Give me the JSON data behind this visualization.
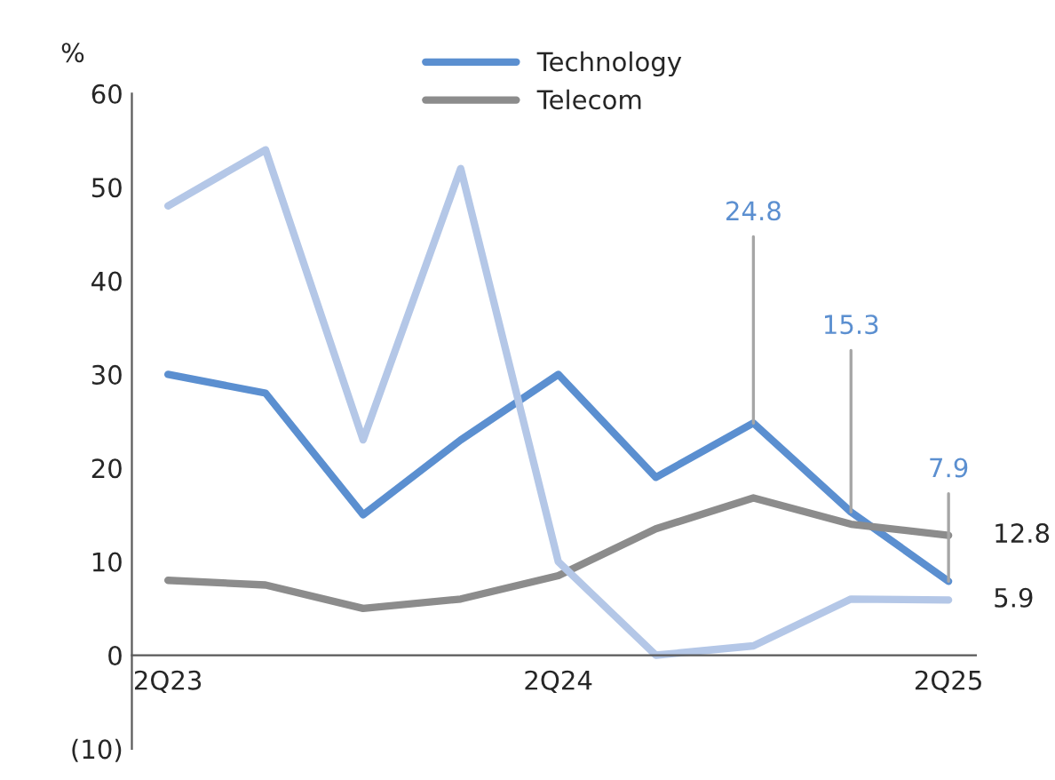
{
  "chart_data": {
    "type": "line",
    "ylabel": "%",
    "categories": [
      "2Q23",
      null,
      null,
      null,
      "2Q24",
      null,
      null,
      null,
      "2Q25"
    ],
    "series": [
      {
        "name": "Technology",
        "color": "#5b8fd0",
        "values": [
          30,
          28,
          15,
          23,
          30,
          19,
          24.8,
          15.3,
          7.9
        ],
        "value_labels": [
          null,
          null,
          null,
          null,
          null,
          null,
          "24.8",
          "15.3",
          "7.9"
        ]
      },
      {
        "name": "Telecom",
        "color": "#8c8c8c",
        "values": [
          8,
          7.5,
          5,
          6,
          8.5,
          13.5,
          16.8,
          14,
          12.8
        ],
        "value_labels": [
          null,
          null,
          null,
          null,
          null,
          null,
          null,
          null,
          "12.8"
        ]
      },
      {
        "color": "#b4c7e7",
        "values": [
          48,
          54,
          23,
          52,
          10,
          0,
          1,
          6,
          5.9
        ],
        "value_labels": [
          null,
          null,
          null,
          null,
          null,
          null,
          null,
          null,
          "5.9"
        ]
      }
    ],
    "ylim": [
      -10,
      60
    ],
    "yticks": [
      {
        "value": -10,
        "label": "(10)"
      },
      0,
      10,
      20,
      30,
      40,
      50,
      60
    ],
    "legend": "top",
    "grid": false,
    "marker": "none",
    "line_style": "solid"
  }
}
